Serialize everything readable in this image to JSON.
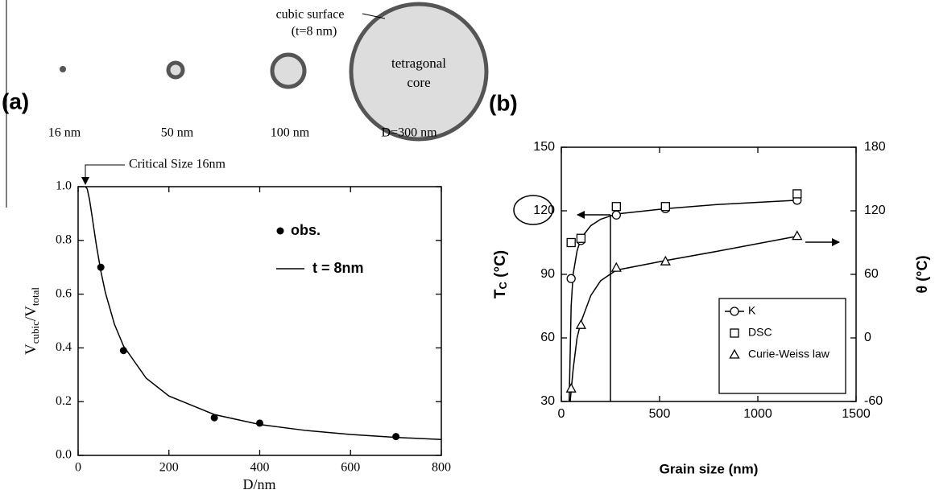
{
  "chart_data": [
    {
      "type": "scatter",
      "panel_label": "(a)",
      "schematic": {
        "sizes": [
          "16 nm",
          "50 nm",
          "100 nm",
          "D=300 nm"
        ],
        "shell_label": [
          "cubic surface",
          "(t=8 nm)"
        ],
        "core_label": [
          "tetragonal",
          "core"
        ]
      },
      "annotation": "Critical Size 16nm",
      "xlabel": "D/nm",
      "ylabel": [
        {
          "text": "V"
        },
        {
          "text": "cubic",
          "sub": true
        },
        {
          "text": "/V"
        },
        {
          "text": "total",
          "sub": true
        }
      ],
      "xlim": [
        0,
        800
      ],
      "xticks": [
        0,
        200,
        400,
        600,
        800
      ],
      "ylim": [
        0,
        1
      ],
      "yticks": [
        {
          "value": 0,
          "label": "0.0"
        },
        0.2,
        0.4,
        0.6,
        0.8,
        {
          "value": 1,
          "label": "1.0"
        }
      ],
      "grid": false,
      "legend": "upper right",
      "series": [
        {
          "name": "obs.",
          "color": "#000000",
          "marker": "dot",
          "x": [
            50,
            100,
            300,
            400,
            700
          ],
          "values": [
            0.7,
            0.39,
            0.14,
            0.12,
            0.07
          ]
        },
        {
          "name": "t = 8nm",
          "color": "#000000",
          "line": true,
          "x": [
            16,
            20,
            25,
            30,
            40,
            50,
            60,
            80,
            100,
            150,
            200,
            300,
            400,
            500,
            600,
            700,
            800
          ],
          "values": [
            1,
            0.992,
            0.953,
            0.898,
            0.784,
            0.686,
            0.606,
            0.488,
            0.407,
            0.287,
            0.221,
            0.152,
            0.115,
            0.093,
            0.078,
            0.067,
            0.059
          ]
        }
      ]
    },
    {
      "type": "scatter",
      "panel_label": "(b)",
      "xlabel": "Grain size (nm)",
      "ylabel": [
        {
          "text": "T"
        },
        {
          "text": "C",
          "sub": true
        },
        {
          "text": " (°C)"
        }
      ],
      "y2label": "θ (°C)",
      "xlim": [
        0,
        1500
      ],
      "xticks": [
        0,
        500,
        1000,
        1500
      ],
      "ylim": [
        30,
        150
      ],
      "yticks": [
        30,
        60,
        90,
        120,
        150
      ],
      "y2lim": [
        -60,
        180
      ],
      "y2ticks": [
        -60,
        0,
        60,
        120,
        180
      ],
      "grid": false,
      "legend": "lower right",
      "series": [
        {
          "name": "K",
          "color": "#000000",
          "marker": "circle",
          "legend_line": true,
          "x": [
            50,
            100,
            280,
            530,
            1200
          ],
          "values": [
            88,
            106,
            118,
            121,
            125
          ]
        },
        {
          "name": "DSC",
          "color": "#000000",
          "marker": "square",
          "x": [
            50,
            100,
            280,
            530,
            1200
          ],
          "values": [
            105,
            107,
            122,
            122,
            128
          ]
        },
        {
          "name": "Curie-Weiss law",
          "color": "#000000",
          "marker": "triangle",
          "axis": "y2",
          "x": [
            50,
            100,
            280,
            530,
            1200
          ],
          "values": [
            -48,
            12,
            66,
            72,
            96
          ]
        }
      ],
      "fit_curves": [
        {
          "color": "#000000",
          "x": [
            40,
            50,
            60,
            80,
            100,
            150,
            200,
            280,
            530,
            800,
            1200
          ],
          "values": [
            30,
            75,
            90,
            101,
            107,
            113,
            116,
            118.5,
            121,
            123,
            125
          ]
        },
        {
          "color": "#000000",
          "axis": "y2",
          "x": [
            45,
            60,
            80,
            100,
            150,
            200,
            280,
            530,
            800,
            1200
          ],
          "values": [
            -60,
            -30,
            0,
            15,
            40,
            54,
            64,
            73,
            82,
            96
          ]
        }
      ]
    }
  ]
}
